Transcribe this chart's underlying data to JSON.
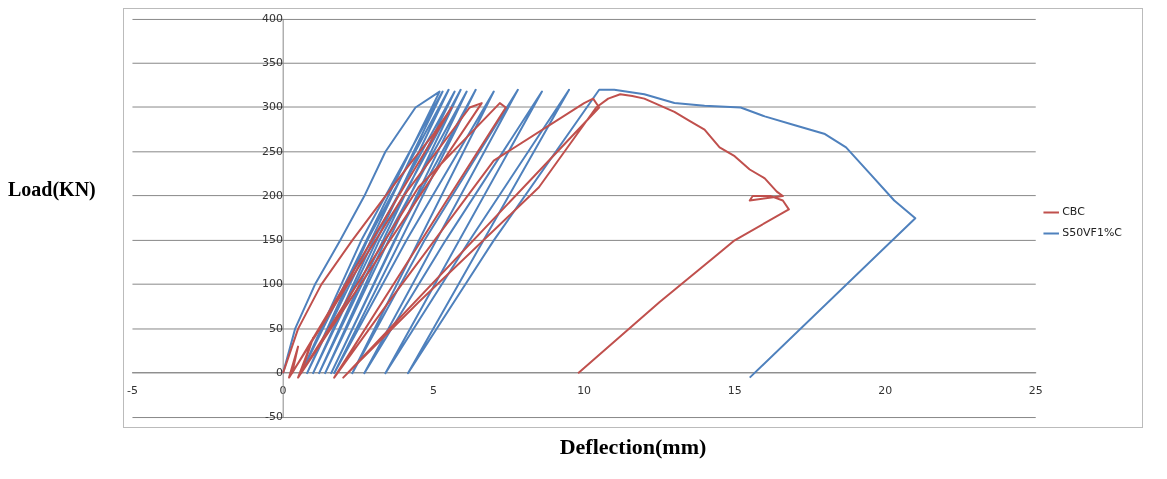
{
  "chart_data": {
    "type": "line",
    "xlabel": "Deflection(mm)",
    "ylabel": "Load(KN)",
    "xlim": [
      -5,
      25
    ],
    "ylim": [
      -50,
      400
    ],
    "xticks": [
      -5,
      0,
      5,
      10,
      15,
      20,
      25
    ],
    "yticks": [
      -50,
      0,
      50,
      100,
      150,
      200,
      250,
      300,
      350,
      400
    ],
    "grid": "y",
    "legend": "right",
    "marker": "none",
    "line_style": "solid",
    "series": [
      {
        "name": "CBC",
        "color": "#c0504d",
        "x": [
          0,
          0.5,
          1.27,
          2.3,
          3.4,
          4.3,
          5.0,
          5.6,
          0.3,
          0.5,
          0.2,
          4.0,
          6.2,
          6.6,
          0.6,
          1.0,
          0.5,
          4.5,
          7.2,
          7.4,
          1.7,
          3.5,
          7.0,
          10.0,
          10.3,
          10.5,
          2.0,
          4.5,
          8.5,
          10.4,
          10.8,
          11.2,
          11.6,
          12,
          13,
          13.5,
          14,
          14.5,
          15,
          15.5,
          16,
          16.4,
          16.6,
          15.5,
          15.6,
          16.2,
          16.6,
          16.8,
          15,
          12.5,
          9.8
        ],
        "values": [
          0,
          50,
          100,
          150,
          200,
          240,
          270,
          300,
          0,
          30,
          -5,
          200,
          300,
          305,
          0,
          40,
          -5,
          210,
          305,
          300,
          -5,
          80,
          240,
          305,
          310,
          300,
          -5,
          80,
          210,
          300,
          310,
          315,
          313,
          310,
          295,
          285,
          275,
          255,
          245,
          230,
          220,
          205,
          200,
          195,
          200,
          200,
          195,
          185,
          150,
          80,
          0
        ]
      },
      {
        "name": "S50VF1%C",
        "color": "#4f81bd",
        "x": [
          0,
          0.4,
          1.06,
          1.9,
          2.7,
          3.4,
          4.4,
          5.2,
          0.6,
          2.6,
          5.3,
          0.8,
          2.8,
          5.5,
          1.0,
          3.0,
          5.7,
          1.2,
          3.2,
          5.9,
          1.4,
          3.4,
          6.1,
          1.6,
          3.7,
          6.4,
          1.7,
          4.1,
          7.0,
          2.3,
          4.7,
          7.8,
          2.7,
          5.4,
          8.6,
          3.4,
          6.2,
          9.5,
          4.15,
          7.0,
          10.5,
          11.0,
          12,
          13,
          14,
          15.2,
          16,
          17,
          18,
          18.7,
          19.5,
          20.3,
          21,
          15.5
        ],
        "values": [
          0,
          50,
          100,
          150,
          200,
          250,
          300,
          318,
          0,
          150,
          318,
          0,
          150,
          320,
          0,
          150,
          318,
          0,
          150,
          320,
          0,
          150,
          318,
          0,
          150,
          320,
          0,
          150,
          318,
          0,
          150,
          320,
          0,
          150,
          318,
          0,
          150,
          320,
          0,
          150,
          320,
          320,
          315,
          305,
          302,
          300,
          290,
          280,
          270,
          255,
          225,
          195,
          175,
          -5
        ]
      }
    ]
  }
}
